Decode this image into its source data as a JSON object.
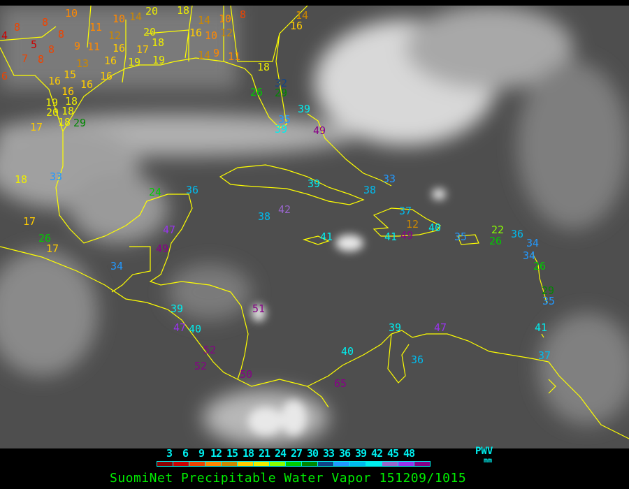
{
  "title": "SuomiNet Precipitable Water Vapor 151209/1015",
  "legend": {
    "unit_label": "PWV",
    "unit": "mm",
    "ticks": [
      "3",
      "6",
      "9",
      "12",
      "15",
      "18",
      "21",
      "24",
      "27",
      "30",
      "33",
      "36",
      "39",
      "42",
      "45",
      "48"
    ],
    "colors": [
      "#8b0000",
      "#cc0000",
      "#ee4400",
      "#ff8800",
      "#cc8800",
      "#ffcc00",
      "#eeee00",
      "#88ff00",
      "#00cc00",
      "#008800",
      "#114488",
      "#2299ff",
      "#00bbee",
      "#00eeee",
      "#9966cc",
      "#9933ee",
      "#880088"
    ]
  },
  "coastline_color": "#ffff00",
  "stations": [
    "8",
    "8",
    "8",
    "4",
    "5",
    "8",
    "7",
    "8",
    "6",
    "13",
    "9",
    "11",
    "16",
    "12",
    "16",
    "11",
    "10",
    "10",
    "14",
    "20",
    "18",
    "20",
    "17",
    "18",
    "19",
    "16",
    "10",
    "12",
    "14",
    "10",
    "8",
    "16",
    "14",
    "19",
    "14",
    "9",
    "11",
    "18",
    "16",
    "15",
    "16",
    "16",
    "18",
    "18",
    "19",
    "20",
    "18",
    "17",
    "29",
    "16",
    "26",
    "32",
    "29",
    "39",
    "35",
    "39",
    "49",
    "33",
    "18",
    "24",
    "36",
    "17",
    "26",
    "17",
    "34",
    "49",
    "47",
    "38",
    "42",
    "39",
    "38",
    "33",
    "41",
    "37",
    "12",
    "49",
    "41",
    "40",
    "35",
    "22",
    "26",
    "36",
    "34",
    "34",
    "26",
    "29",
    "35",
    "41",
    "39",
    "47",
    "40",
    "52",
    "52",
    "50",
    "51",
    "40",
    "65",
    "39",
    "36",
    "47",
    "37"
  ]
}
